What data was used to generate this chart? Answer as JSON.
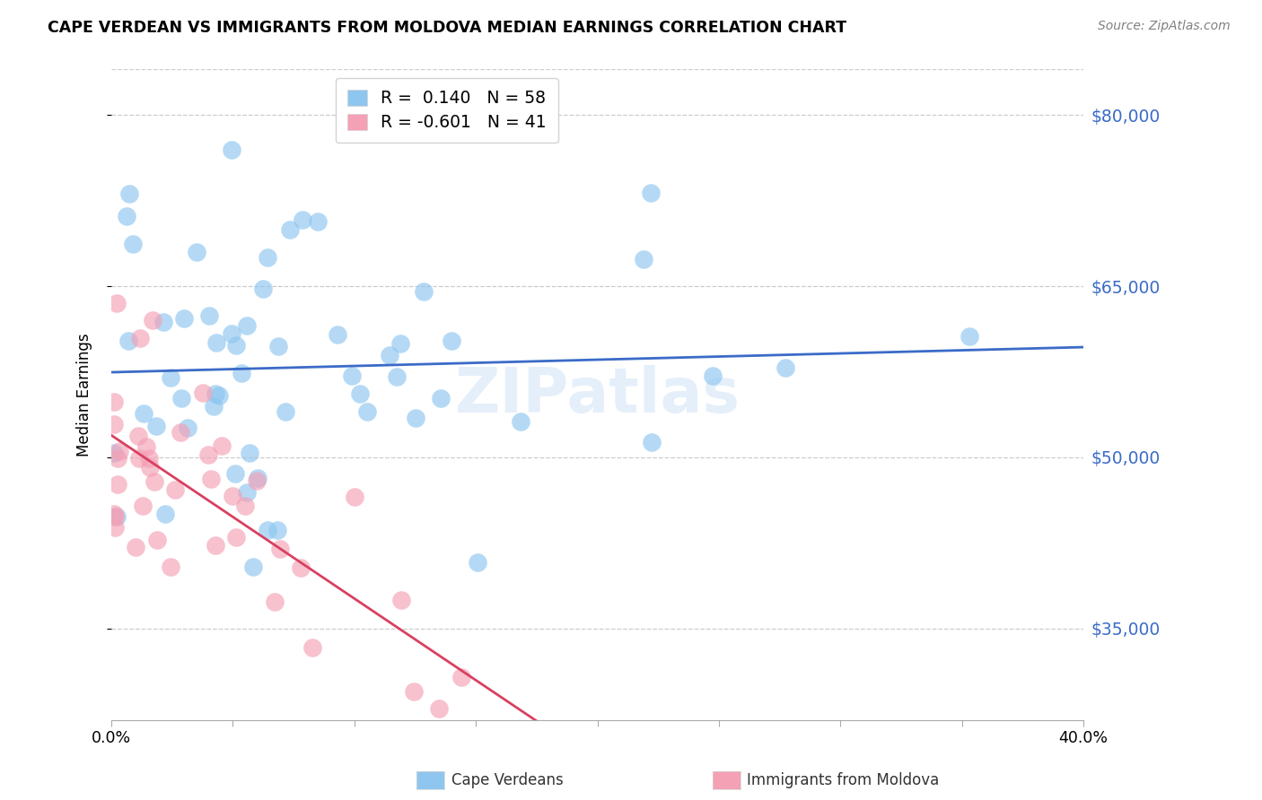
{
  "title": "CAPE VERDEAN VS IMMIGRANTS FROM MOLDOVA MEDIAN EARNINGS CORRELATION CHART",
  "source": "Source: ZipAtlas.com",
  "ylabel": "Median Earnings",
  "xlim": [
    0.0,
    0.4
  ],
  "ylim": [
    27000,
    84000
  ],
  "yticks": [
    35000,
    50000,
    65000,
    80000
  ],
  "ytick_labels": [
    "$35,000",
    "$50,000",
    "$65,000",
    "$80,000"
  ],
  "xtick_positions": [
    0.0,
    0.05,
    0.1,
    0.15,
    0.2,
    0.25,
    0.3,
    0.35,
    0.4
  ],
  "xtick_labels": [
    "0.0%",
    "",
    "",
    "",
    "",
    "",
    "",
    "",
    "40.0%"
  ],
  "background_color": "#ffffff",
  "cape_verdean_color": "#8EC6F0",
  "moldova_color": "#F4A0B5",
  "line_blue_color": "#3B6BC8",
  "line_red_color": "#D94060",
  "R_blue": 0.14,
  "N_blue": 58,
  "R_red": -0.601,
  "N_red": 41
}
